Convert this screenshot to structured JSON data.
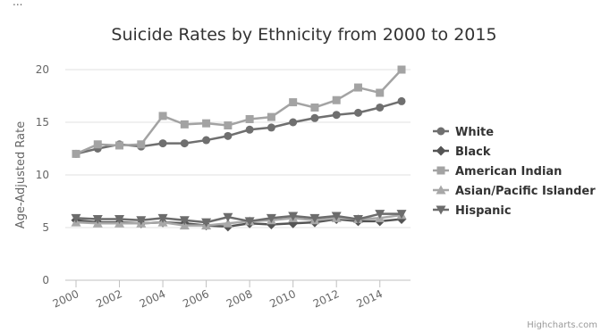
{
  "header_fragment": "...",
  "credits": "Highcharts.com",
  "colors": {
    "series": [
      "#6f6f6f",
      "#545454",
      "#a3a3a3",
      "#a8a8a8",
      "#6c6c6c"
    ],
    "gridline": "#e0e0e0",
    "axis_line": "#c0c0c0"
  },
  "chart_data": {
    "type": "line",
    "title": "Suicide Rates by Ethnicity from 2000 to 2015",
    "xlabel": "",
    "ylabel": "Age-Adjusted Rate",
    "x": [
      2000,
      2001,
      2002,
      2003,
      2004,
      2005,
      2006,
      2007,
      2008,
      2009,
      2010,
      2011,
      2012,
      2013,
      2014,
      2015
    ],
    "x_ticks": [
      "2000",
      "2002",
      "2004",
      "2006",
      "2008",
      "2010",
      "2012",
      "2014"
    ],
    "y_ticks": [
      "0",
      "5",
      "10",
      "15",
      "20"
    ],
    "xlim": [
      2000,
      2015
    ],
    "ylim": [
      0,
      20
    ],
    "grid": true,
    "legend_position": "right",
    "series": [
      {
        "name": "White",
        "marker": "circle",
        "values": [
          12.0,
          12.5,
          12.9,
          12.7,
          13.0,
          13.0,
          13.3,
          13.7,
          14.3,
          14.5,
          15.0,
          15.4,
          15.7,
          15.9,
          16.4,
          17.0
        ]
      },
      {
        "name": "Black",
        "marker": "diamond",
        "values": [
          5.7,
          5.5,
          5.5,
          5.4,
          5.5,
          5.4,
          5.2,
          5.1,
          5.4,
          5.3,
          5.4,
          5.5,
          5.8,
          5.6,
          5.6,
          5.8
        ]
      },
      {
        "name": "American Indian",
        "marker": "square",
        "values": [
          12.0,
          12.9,
          12.8,
          12.9,
          15.6,
          14.8,
          14.9,
          14.7,
          15.3,
          15.5,
          16.9,
          16.4,
          17.1,
          18.3,
          17.8,
          20.0
        ]
      },
      {
        "name": "Asian/Pacific Islander",
        "marker": "triangle",
        "values": [
          5.5,
          5.4,
          5.4,
          5.4,
          5.5,
          5.2,
          5.2,
          5.4,
          5.6,
          5.7,
          5.9,
          5.7,
          5.9,
          5.8,
          5.9,
          6.2
        ]
      },
      {
        "name": "Hispanic",
        "marker": "triangle-down",
        "values": [
          5.9,
          5.8,
          5.8,
          5.7,
          5.9,
          5.7,
          5.5,
          6.0,
          5.6,
          5.9,
          6.1,
          5.9,
          6.1,
          5.8,
          6.3,
          6.3
        ]
      }
    ]
  }
}
